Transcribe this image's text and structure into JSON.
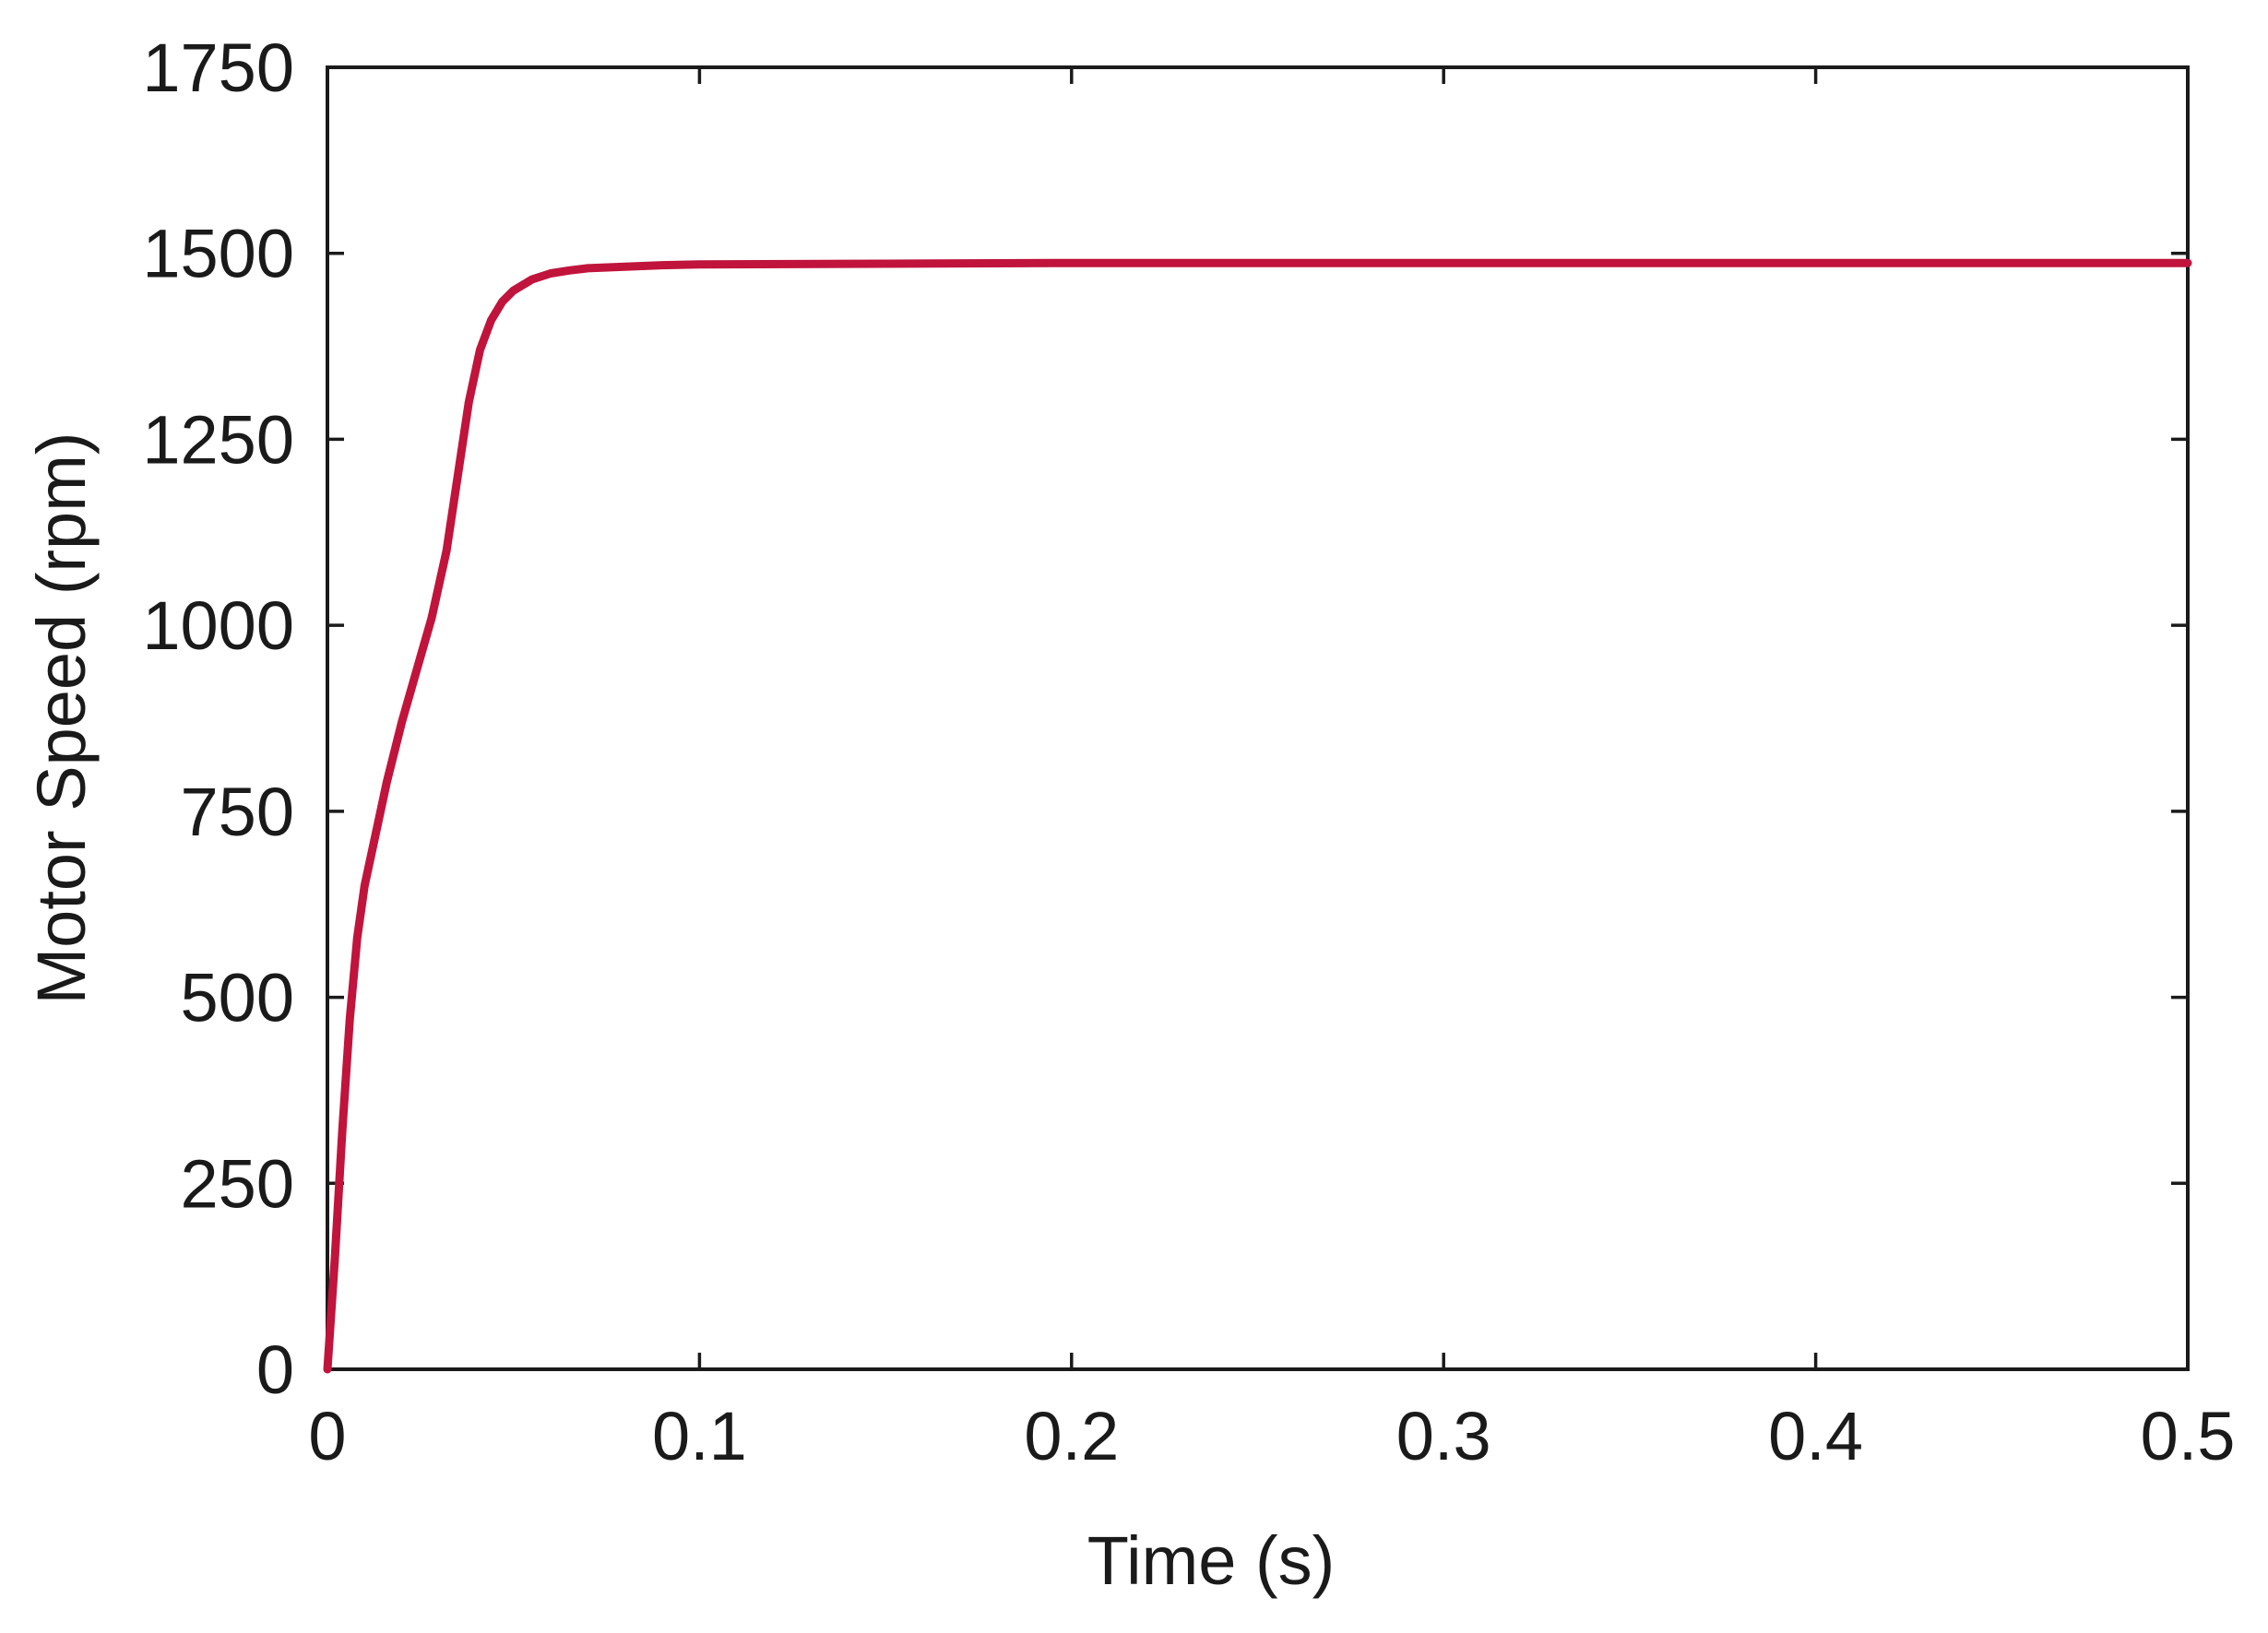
{
  "chart_data": {
    "type": "line",
    "title": "",
    "xlabel": "Time (s)",
    "ylabel": "Motor Speed (rpm)",
    "xlim": [
      0,
      0.5
    ],
    "ylim": [
      0,
      1750
    ],
    "xticks": [
      0,
      0.1,
      0.2,
      0.3,
      0.4,
      0.5
    ],
    "xtick_labels": [
      "0",
      "0.1",
      "0.2",
      "0.3",
      "0.4",
      "0.5"
    ],
    "yticks": [
      0,
      250,
      500,
      750,
      1000,
      1250,
      1500,
      1750
    ],
    "ytick_labels": [
      "0",
      "250",
      "500",
      "750",
      "1000",
      "1250",
      "1500",
      "1750"
    ],
    "grid": false,
    "legend": "none",
    "series": [
      {
        "color": "#c0143c",
        "x": [
          0,
          0.002,
          0.004,
          0.006,
          0.008,
          0.01,
          0.013,
          0.016,
          0.02,
          0.024,
          0.028,
          0.032,
          0.035,
          0.038,
          0.041,
          0.044,
          0.047,
          0.05,
          0.055,
          0.06,
          0.065,
          0.07,
          0.08,
          0.09,
          0.1,
          0.15,
          0.2,
          0.3,
          0.4,
          0.5
        ],
        "y": [
          0,
          150,
          320,
          470,
          580,
          650,
          720,
          790,
          870,
          940,
          1010,
          1100,
          1200,
          1300,
          1370,
          1410,
          1435,
          1450,
          1465,
          1473,
          1477,
          1480,
          1482,
          1484,
          1485,
          1486,
          1487,
          1487,
          1487,
          1487
        ]
      }
    ]
  }
}
